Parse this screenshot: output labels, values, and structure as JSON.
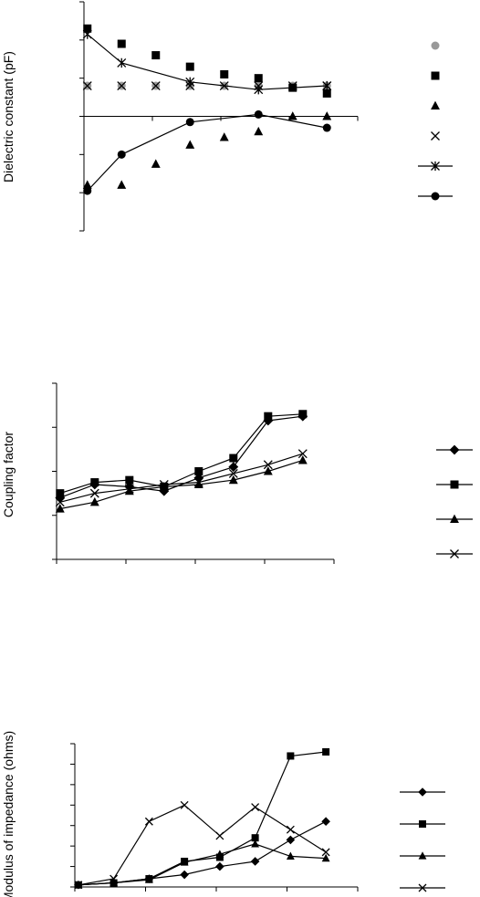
{
  "chart_data": [
    {
      "type": "scatter",
      "ylabel": "Dielectric constant (pF)",
      "x": [
        1,
        2,
        3,
        4,
        5,
        6,
        7,
        8
      ],
      "xlim": [
        0.9,
        8.9
      ],
      "ylim": [
        -3,
        3
      ],
      "grid": false,
      "legend": "right",
      "series": [
        {
          "marker": "circle",
          "color": "#999999",
          "line": false,
          "x": [
            1,
            2,
            3,
            4,
            5,
            6,
            7,
            8
          ],
          "values": [
            0.8,
            0.8,
            0.8,
            0.8,
            0.8,
            0.8,
            0.8,
            0.8
          ]
        },
        {
          "marker": "square",
          "color": "#000000",
          "line": false,
          "x": [
            1,
            2,
            3,
            4,
            5,
            6,
            7,
            8
          ],
          "values": [
            2.3,
            1.9,
            1.6,
            1.3,
            1.1,
            1.0,
            0.75,
            0.6
          ]
        },
        {
          "marker": "triangle",
          "color": "#000000",
          "line": false,
          "x": [
            1,
            2,
            3,
            4,
            5,
            6,
            7,
            8
          ],
          "values": [
            -1.8,
            -1.8,
            -1.25,
            -0.75,
            -0.55,
            -0.4,
            0.0,
            0.0
          ]
        },
        {
          "marker": "x",
          "color": "#000000",
          "line": false,
          "x": [
            1,
            2,
            3,
            4,
            5,
            6,
            7,
            8
          ],
          "values": [
            0.8,
            0.8,
            0.8,
            0.8,
            0.8,
            0.8,
            0.8,
            0.8
          ]
        },
        {
          "marker": "star",
          "color": "#000000",
          "line": true,
          "x": [
            1,
            2,
            4,
            6,
            8
          ],
          "values": [
            2.15,
            1.4,
            0.9,
            0.7,
            0.8
          ]
        },
        {
          "marker": "circle",
          "color": "#000000",
          "line": true,
          "x": [
            1,
            2,
            4,
            6,
            8
          ],
          "values": [
            -1.95,
            -1.0,
            -0.15,
            0.05,
            -0.3
          ]
        }
      ]
    },
    {
      "type": "line",
      "ylabel": "Coupling factor",
      "x": [
        1,
        2,
        3,
        4,
        5,
        6,
        7,
        8
      ],
      "xlim": [
        0.9,
        8.9
      ],
      "ylim": [
        0,
        4
      ],
      "grid": false,
      "legend": "right",
      "series": [
        {
          "marker": "diamond",
          "values": [
            1.4,
            1.7,
            1.65,
            1.55,
            1.85,
            2.1,
            3.15,
            3.25
          ]
        },
        {
          "marker": "square",
          "values": [
            1.5,
            1.75,
            1.8,
            1.65,
            2.0,
            2.3,
            3.25,
            3.3
          ]
        },
        {
          "marker": "triangle",
          "values": [
            1.15,
            1.3,
            1.55,
            1.65,
            1.7,
            1.8,
            2.0,
            2.25
          ]
        },
        {
          "marker": "x",
          "values": [
            1.3,
            1.5,
            1.6,
            1.7,
            1.75,
            1.95,
            2.15,
            2.4
          ]
        }
      ]
    },
    {
      "type": "line",
      "ylabel": "Modulus of impedance (ohms)",
      "x": [
        1,
        2,
        3,
        4,
        5,
        6,
        7,
        8
      ],
      "xlim": [
        0.9,
        8.9
      ],
      "ylim": [
        0,
        7
      ],
      "grid": false,
      "legend": "right",
      "series": [
        {
          "marker": "diamond",
          "values": [
            0.1,
            0.2,
            0.4,
            0.6,
            1.0,
            1.25,
            2.3,
            3.2
          ]
        },
        {
          "marker": "square",
          "values": [
            0.1,
            0.2,
            0.4,
            1.25,
            1.45,
            2.4,
            6.4,
            6.6
          ]
        },
        {
          "marker": "triangle",
          "values": [
            0.1,
            0.2,
            0.35,
            1.2,
            1.6,
            2.1,
            1.5,
            1.4
          ]
        },
        {
          "marker": "x",
          "values": [
            0.1,
            0.4,
            3.2,
            4.0,
            2.5,
            3.9,
            2.8,
            1.7
          ]
        }
      ]
    }
  ]
}
